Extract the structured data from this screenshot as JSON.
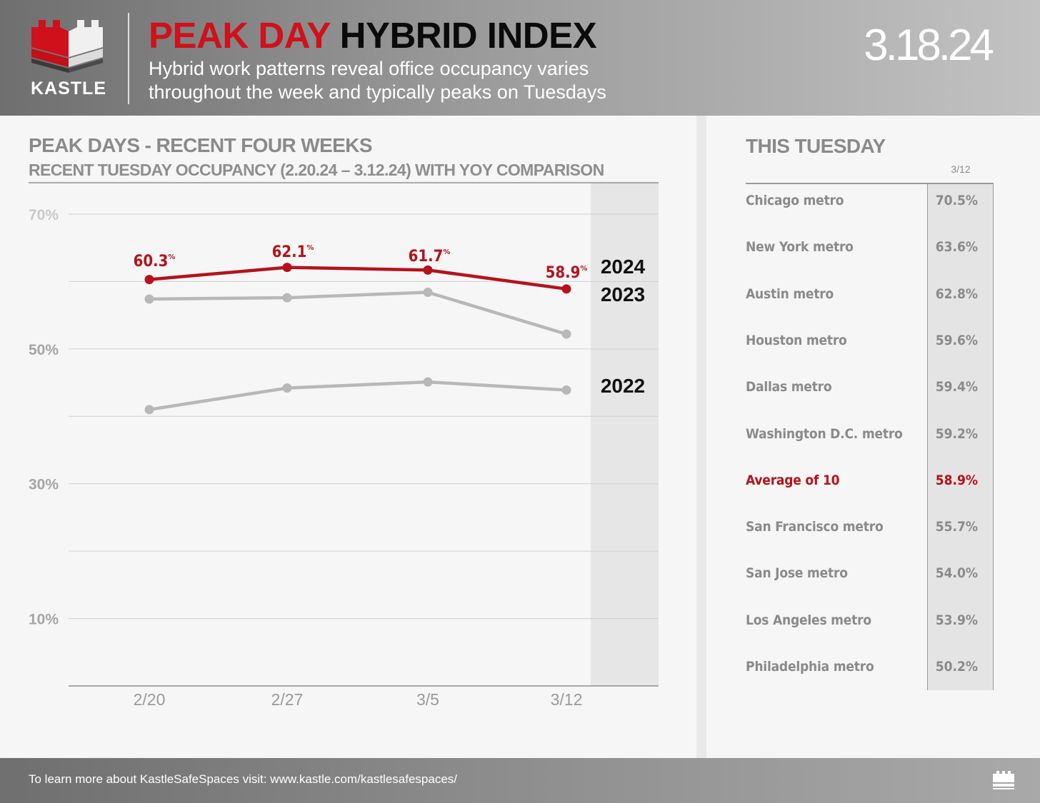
{
  "header": {
    "logo_text": "KASTLE",
    "title_part1": "PEAK DAY",
    "title_part2": "HYBRID INDEX",
    "subtitle_line1": "Hybrid work patterns reveal office occupancy varies",
    "subtitle_line2": "throughout the week and typically peaks on Tuesdays",
    "date": "3.18.24"
  },
  "left": {
    "title": "PEAK DAYS - RECENT FOUR WEEKS",
    "subtitle": "RECENT TUESDAY OCCUPANCY (2.20.24 – 3.12.24) WITH YOY COMPARISON"
  },
  "chart_data": {
    "type": "line",
    "title": "PEAK DAYS - RECENT FOUR WEEKS",
    "subtitle": "RECENT TUESDAY OCCUPANCY (2.20.24 – 3.12.24) WITH YOY COMPARISON",
    "categories": [
      "2/20",
      "2/27",
      "3/5",
      "3/12"
    ],
    "ylim": [
      0,
      70
    ],
    "yticks": [
      10,
      30,
      50,
      70
    ],
    "ytick_labels": [
      "10%",
      "30%",
      "50%",
      "70%"
    ],
    "grid": true,
    "xlabel": "",
    "ylabel": "",
    "series": [
      {
        "name": "2024",
        "values": [
          60.3,
          62.1,
          61.7,
          58.9
        ],
        "labels": [
          "60.3",
          "62.1",
          "61.7",
          "58.9"
        ],
        "color": "#b5121b"
      },
      {
        "name": "2023",
        "values": [
          57.4,
          57.6,
          58.4,
          52.2
        ],
        "color": "#b8b8b8"
      },
      {
        "name": "2022",
        "values": [
          41.0,
          44.2,
          45.1,
          43.9
        ],
        "color": "#b8b8b8"
      }
    ],
    "pct_symbol": "%"
  },
  "right": {
    "title": "THIS TUESDAY",
    "column_header": "3/12",
    "rows": [
      {
        "city": "Chicago metro",
        "value": "70.5%"
      },
      {
        "city": "New York metro",
        "value": "63.6%"
      },
      {
        "city": "Austin metro",
        "value": "62.8%"
      },
      {
        "city": "Houston metro",
        "value": "59.6%"
      },
      {
        "city": "Dallas metro",
        "value": "59.4%"
      },
      {
        "city": "Washington D.C. metro",
        "value": "59.2%"
      },
      {
        "city": "Average of 10",
        "value": "58.9%"
      },
      {
        "city": "San Francisco metro",
        "value": "55.7%"
      },
      {
        "city": "San Jose metro",
        "value": "54.0%"
      },
      {
        "city": "Los Angeles metro",
        "value": "53.9%"
      },
      {
        "city": "Philadelphia metro",
        "value": "50.2%"
      }
    ]
  },
  "footer": {
    "text": "To learn more about KastleSafeSpaces visit: www.kastle.com/kastlesafespaces/"
  },
  "colors": {
    "brand_red": "#d0101a",
    "series_red": "#b5121b",
    "series_gray": "#b8b8b8"
  }
}
